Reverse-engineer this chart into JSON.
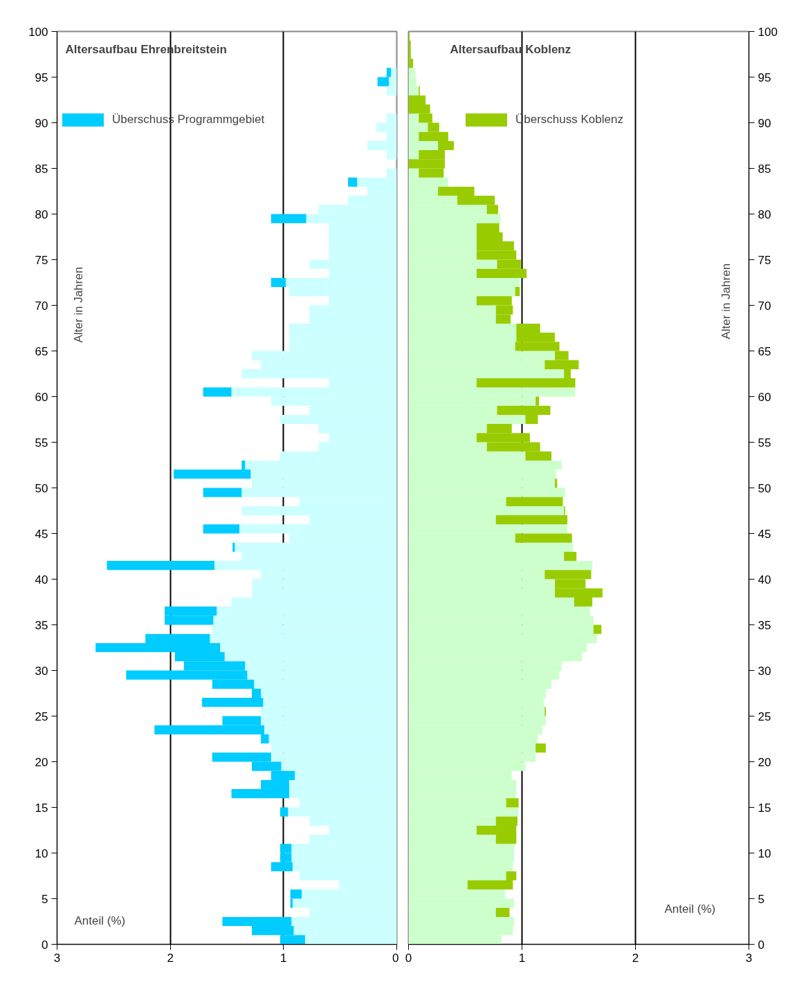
{
  "chart_data": [
    {
      "type": "bar",
      "orientation": "horizontal",
      "stacked": true,
      "title": "Altersaufbau Ehrenbreitstein",
      "xlabel": "Anteil (%)",
      "ylabel": "Alter in Jahren",
      "grid": "x",
      "legend": "top left",
      "x": [
        0.5,
        1.5,
        2.5,
        3.5,
        4.5,
        5.5,
        6.5,
        7.5,
        8.5,
        9.5,
        10.5,
        11.5,
        12.5,
        13.5,
        14.5,
        15.5,
        16.5,
        17.5,
        18.5,
        19.5,
        20.5,
        21.5,
        22.5,
        23.5,
        24.5,
        25.5,
        26.5,
        27.5,
        28.5,
        29.5,
        30.5,
        31.5,
        32.5,
        33.5,
        34.5,
        35.5,
        36.5,
        37.5,
        38.5,
        39.5,
        40.5,
        41.5,
        42.5,
        43.5,
        44.5,
        45.5,
        46.5,
        47.5,
        48.5,
        49.5,
        50.5,
        51.5,
        52.5,
        53.5,
        54.5,
        55.5,
        56.5,
        57.5,
        58.5,
        59.5,
        60.5,
        61.5,
        62.5,
        63.5,
        64.5,
        65.5,
        66.5,
        67.5,
        68.5,
        69.5,
        70.5,
        71.5,
        72.5,
        73.5,
        74.5,
        75.5,
        76.5,
        77.5,
        78.5,
        79.5,
        80.5,
        81.5,
        82.5,
        83.5,
        84.5,
        85.5,
        86.5,
        87.5,
        88.5,
        89.5,
        90.5,
        91.5,
        92.5,
        93.5,
        94.5,
        95.5,
        96.5,
        97.5,
        98.5,
        99.5
      ],
      "xlim": [
        3,
        0
      ],
      "xticks": [
        3,
        2,
        1,
        0
      ],
      "ylim": [
        0,
        100
      ],
      "yticks": [
        0,
        5,
        10,
        15,
        20,
        25,
        30,
        35,
        40,
        45,
        50,
        55,
        60,
        65,
        70,
        75,
        80,
        85,
        90,
        95,
        100
      ],
      "series": [
        {
          "color": "#ccffff",
          "values": [
            0.81,
            0.91,
            0.93,
            0.77,
            0.92,
            0.84,
            0.51,
            0.86,
            0.92,
            0.93,
            0.93,
            0.77,
            0.6,
            0.77,
            0.96,
            0.86,
            0.95,
            0.95,
            0.9,
            1.02,
            1.11,
            1.11,
            1.13,
            1.17,
            1.2,
            1.2,
            1.18,
            1.2,
            1.26,
            1.32,
            1.34,
            1.52,
            1.56,
            1.65,
            1.63,
            1.62,
            1.59,
            1.46,
            1.28,
            1.28,
            1.2,
            1.61,
            1.37,
            1.43,
            0.95,
            1.39,
            0.77,
            1.37,
            0.86,
            1.37,
            1.28,
            1.29,
            1.34,
            1.03,
            0.69,
            0.6,
            0.69,
            1.03,
            0.77,
            1.11,
            1.46,
            0.6,
            1.37,
            1.2,
            1.28,
            0.95,
            0.95,
            0.95,
            0.77,
            0.77,
            0.6,
            0.95,
            0.98,
            0.6,
            0.77,
            0.6,
            0.6,
            0.6,
            0.6,
            0.8,
            0.69,
            0.43,
            0.26,
            0.35,
            0.09,
            0,
            0.09,
            0.26,
            0.09,
            0.18,
            0.09,
            0,
            0,
            0.09,
            0.07,
            0.05,
            0,
            0,
            0,
            0
          ]
        },
        {
          "name": "Überschuss Programmgebiet",
          "color": "#00ccff",
          "values": [
            0.22,
            0.37,
            0.61,
            0,
            0.02,
            0.1,
            0,
            0,
            0.19,
            0.1,
            0.1,
            0,
            0,
            0,
            0.07,
            0,
            0.51,
            0.25,
            0.21,
            0.26,
            0.52,
            0,
            0.07,
            0.97,
            0.34,
            0,
            0.54,
            0.08,
            0.37,
            1.07,
            0.54,
            0.44,
            1.1,
            0.57,
            0,
            0.43,
            0.46,
            0,
            0,
            0,
            0,
            0.95,
            0,
            0.02,
            0,
            0.32,
            0,
            0,
            0,
            0.34,
            0,
            0.68,
            0.03,
            0,
            0,
            0,
            0,
            0,
            0,
            0,
            0.25,
            0,
            0,
            0,
            0,
            0,
            0,
            0,
            0,
            0,
            0,
            0,
            0.13,
            0,
            0,
            0,
            0,
            0,
            0,
            0.31,
            0,
            0,
            0,
            0.08,
            0,
            0,
            0,
            0,
            0,
            0,
            0,
            0,
            0,
            0,
            0.1,
            0.04,
            0,
            0,
            0,
            0
          ]
        }
      ]
    },
    {
      "type": "bar",
      "orientation": "horizontal",
      "stacked": true,
      "title": "Altersaufbau Koblenz",
      "xlabel": "Anteil (%)",
      "ylabel": "Alter in Jahren",
      "grid": "x",
      "legend": "top",
      "x": [
        0.5,
        1.5,
        2.5,
        3.5,
        4.5,
        5.5,
        6.5,
        7.5,
        8.5,
        9.5,
        10.5,
        11.5,
        12.5,
        13.5,
        14.5,
        15.5,
        16.5,
        17.5,
        18.5,
        19.5,
        20.5,
        21.5,
        22.5,
        23.5,
        24.5,
        25.5,
        26.5,
        27.5,
        28.5,
        29.5,
        30.5,
        31.5,
        32.5,
        33.5,
        34.5,
        35.5,
        36.5,
        37.5,
        38.5,
        39.5,
        40.5,
        41.5,
        42.5,
        43.5,
        44.5,
        45.5,
        46.5,
        47.5,
        48.5,
        49.5,
        50.5,
        51.5,
        52.5,
        53.5,
        54.5,
        55.5,
        56.5,
        57.5,
        58.5,
        59.5,
        60.5,
        61.5,
        62.5,
        63.5,
        64.5,
        65.5,
        66.5,
        67.5,
        68.5,
        69.5,
        70.5,
        71.5,
        72.5,
        73.5,
        74.5,
        75.5,
        76.5,
        77.5,
        78.5,
        79.5,
        80.5,
        81.5,
        82.5,
        83.5,
        84.5,
        85.5,
        86.5,
        87.5,
        88.5,
        89.5,
        90.5,
        91.5,
        92.5,
        93.5,
        94.5,
        95.5,
        96.5,
        97.5,
        98.5,
        99.5
      ],
      "xlim": [
        0,
        3
      ],
      "xticks": [
        0,
        1,
        2,
        3
      ],
      "ylim": [
        0,
        100
      ],
      "yticks": [
        0,
        5,
        10,
        15,
        20,
        25,
        30,
        35,
        40,
        45,
        50,
        55,
        60,
        65,
        70,
        75,
        80,
        85,
        90,
        95,
        100
      ],
      "series": [
        {
          "color": "#ccffcc",
          "values": [
            0.82,
            0.92,
            0.93,
            0.77,
            0.93,
            0.85,
            0.52,
            0.86,
            0.92,
            0.93,
            0.93,
            0.77,
            0.6,
            0.77,
            0.97,
            0.86,
            0.95,
            0.95,
            0.91,
            1.03,
            1.12,
            1.12,
            1.14,
            1.18,
            1.21,
            1.2,
            1.19,
            1.21,
            1.26,
            1.33,
            1.35,
            1.53,
            1.57,
            1.66,
            1.63,
            1.63,
            1.6,
            1.46,
            1.29,
            1.29,
            1.2,
            1.62,
            1.37,
            1.45,
            0.94,
            1.4,
            0.77,
            1.37,
            0.86,
            1.38,
            1.29,
            1.3,
            1.35,
            1.03,
            0.69,
            0.6,
            0.69,
            1.03,
            0.78,
            1.12,
            1.47,
            0.6,
            1.37,
            1.2,
            1.29,
            0.94,
            0.95,
            0.95,
            0.77,
            0.77,
            0.6,
            0.94,
            0.98,
            0.6,
            0.78,
            0.6,
            0.6,
            0.6,
            0.6,
            0.81,
            0.69,
            0.43,
            0.26,
            0.35,
            0.09,
            0,
            0.09,
            0.26,
            0.09,
            0.17,
            0.09,
            0,
            0,
            0.09,
            0.07,
            0.06,
            0,
            0,
            0,
            0
          ]
        },
        {
          "name": "Überschuss Koblenz",
          "color": "#99cc00",
          "values": [
            0,
            0,
            0,
            0.12,
            0,
            0,
            0.4,
            0.09,
            0,
            0,
            0,
            0.18,
            0.35,
            0.19,
            0,
            0.11,
            0,
            0,
            0,
            0,
            0,
            0.09,
            0,
            0,
            0,
            0.01,
            0,
            0,
            0,
            0,
            0,
            0,
            0,
            0,
            0.07,
            0,
            0,
            0.16,
            0.42,
            0.27,
            0.41,
            0,
            0.11,
            0,
            0.5,
            0,
            0.63,
            0.01,
            0.5,
            0,
            0.02,
            0,
            0,
            0.23,
            0.47,
            0.47,
            0.22,
            0.11,
            0.47,
            0.03,
            0,
            0.87,
            0.06,
            0.3,
            0.12,
            0.39,
            0.34,
            0.21,
            0.13,
            0.15,
            0.31,
            0.04,
            0,
            0.44,
            0.21,
            0.35,
            0.33,
            0.23,
            0.2,
            0,
            0.1,
            0.33,
            0.32,
            0,
            0.22,
            0.32,
            0.23,
            0.14,
            0.26,
            0.1,
            0.12,
            0.19,
            0.15,
            0.01,
            0,
            0,
            0.04,
            0.02,
            0.02,
            0.01
          ]
        }
      ]
    }
  ]
}
